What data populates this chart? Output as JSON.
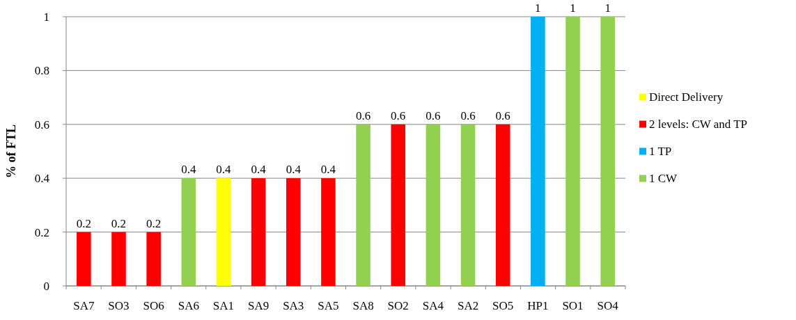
{
  "chart_data": {
    "type": "bar",
    "ylabel": "% of FTL",
    "categories": [
      "SA7",
      "SO3",
      "SO6",
      "SA6",
      "SA1",
      "SA9",
      "SA3",
      "SA5",
      "SA8",
      "SO2",
      "SA4",
      "SA2",
      "SO5",
      "HP1",
      "SO1",
      "SO4"
    ],
    "series": [
      {
        "name": "Direct Delivery",
        "color": "#ffff00",
        "values": [
          null,
          null,
          null,
          null,
          0.4,
          null,
          null,
          null,
          null,
          null,
          null,
          null,
          null,
          null,
          null,
          null
        ]
      },
      {
        "name": "2 levels: CW and TP",
        "color": "#ff0000",
        "values": [
          0.2,
          0.2,
          0.2,
          null,
          null,
          0.4,
          0.4,
          0.4,
          null,
          0.6,
          null,
          null,
          0.6,
          null,
          null,
          null
        ]
      },
      {
        "name": "1 TP",
        "color": "#00b0f0",
        "values": [
          null,
          null,
          null,
          null,
          null,
          null,
          null,
          null,
          null,
          null,
          null,
          null,
          null,
          1,
          null,
          null
        ]
      },
      {
        "name": "1 CW",
        "color": "#92d050",
        "values": [
          null,
          null,
          null,
          0.4,
          null,
          null,
          null,
          null,
          0.6,
          null,
          0.6,
          0.6,
          null,
          null,
          1,
          1
        ]
      }
    ],
    "ylim": [
      0,
      1
    ],
    "yticks": [
      0,
      0.2,
      0.4,
      0.6,
      0.8,
      1
    ],
    "grid": "y",
    "legend": "right",
    "data_labels": true
  }
}
